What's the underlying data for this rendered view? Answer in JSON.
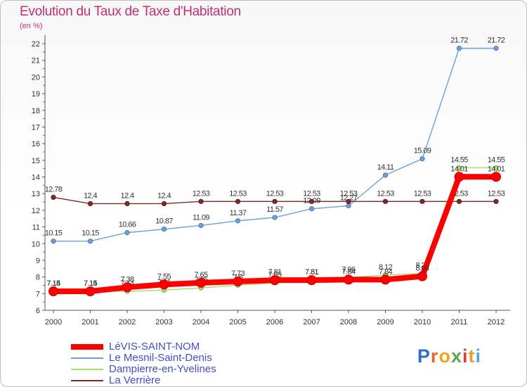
{
  "title": "Evolution du Taux de Taxe d'Habitation",
  "unit_label": "(en %)",
  "logo": {
    "letters": [
      "P",
      "r",
      "o",
      "x",
      "i",
      "t",
      "i"
    ],
    "colors": [
      "#2f6fc6",
      "#e5672a",
      "#f3a51d",
      "#5aa84d",
      "#e23b3b",
      "#e5a12b",
      "#58a7d8"
    ]
  },
  "legend": [
    {
      "label": "LéVIS-SAINT-NOM",
      "color": "#ff0000"
    },
    {
      "label": "Le Mesnil-Saint-Denis",
      "color": "#6f9fd8"
    },
    {
      "label": "Dampierre-en-Yvelines",
      "color": "#a4dc6e"
    },
    {
      "label": "La Verrière",
      "color": "#7a2a2a"
    }
  ],
  "chart_data": {
    "type": "line",
    "title": "Evolution du Taux de Taxe d'Habitation",
    "ylabel": "(en %)",
    "x": [
      "2000",
      "2001",
      "2002",
      "2003",
      "2004",
      "2005",
      "2006",
      "2007",
      "2008",
      "2009",
      "2010",
      "2011",
      "2012"
    ],
    "ylim": [
      6,
      22
    ],
    "yticks": [
      6,
      7,
      8,
      9,
      10,
      11,
      12,
      13,
      14,
      15,
      16,
      17,
      18,
      19,
      20,
      21,
      22
    ],
    "grid": false,
    "series": [
      {
        "name": "LéVIS-SAINT-NOM",
        "color": "#ff0000",
        "values": [
          7.14,
          7.14,
          7.38,
          7.55,
          7.65,
          7.73,
          7.81,
          7.81,
          7.84,
          7.84,
          8.04,
          14.01,
          14.01
        ]
      },
      {
        "name": "Le Mesnil-Saint-Denis",
        "color": "#6f9fd8",
        "values": [
          10.15,
          10.15,
          10.66,
          10.87,
          11.09,
          11.37,
          11.57,
          12.09,
          12.27,
          14.11,
          15.09,
          21.72,
          21.72
        ]
      },
      {
        "name": "Dampierre-en-Yvelines",
        "color": "#a4dc6e",
        "values": [
          7.15,
          7.15,
          7.14,
          7.21,
          7.35,
          7.5,
          7.65,
          7.81,
          7.96,
          8.12,
          8.21,
          14.55,
          14.55
        ]
      },
      {
        "name": "La Verrière",
        "color": "#7a2a2a",
        "values": [
          12.78,
          12.4,
          12.4,
          12.4,
          12.53,
          12.53,
          12.53,
          12.53,
          12.53,
          12.53,
          12.53,
          12.53,
          12.53
        ]
      }
    ]
  }
}
